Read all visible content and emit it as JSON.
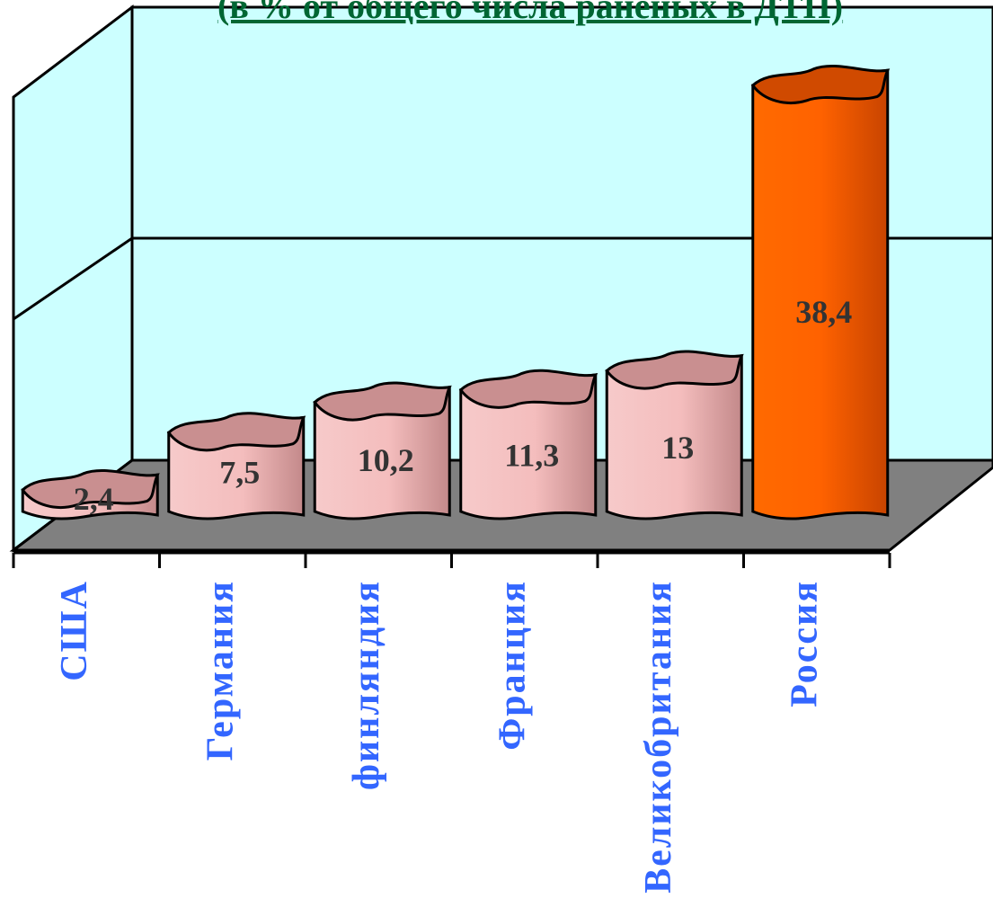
{
  "chart_data": {
    "type": "bar",
    "title": "(в % от общего числа раненых в ДТП)",
    "categories": [
      "США",
      "Германия",
      "финляндия",
      "Франция",
      "Великобритания",
      "Россия"
    ],
    "values": [
      2.4,
      7.5,
      10.2,
      11.3,
      13,
      38.4
    ],
    "value_labels": [
      "2,4",
      "7,5",
      "10,2",
      "11,3",
      "13",
      "38,4"
    ],
    "ylim": [
      0,
      40
    ],
    "grid": true,
    "legend": "none",
    "colors": {
      "bar": "#f4c0c0",
      "bar_dark": "#c98f90",
      "highlight_bar": "#ff6600",
      "highlight_bar_dark": "#d04a00",
      "back_wall": "#ccffff",
      "floor": "#808080",
      "title": "#006633",
      "category_label": "#3366ff",
      "value_label": "#333333"
    }
  }
}
